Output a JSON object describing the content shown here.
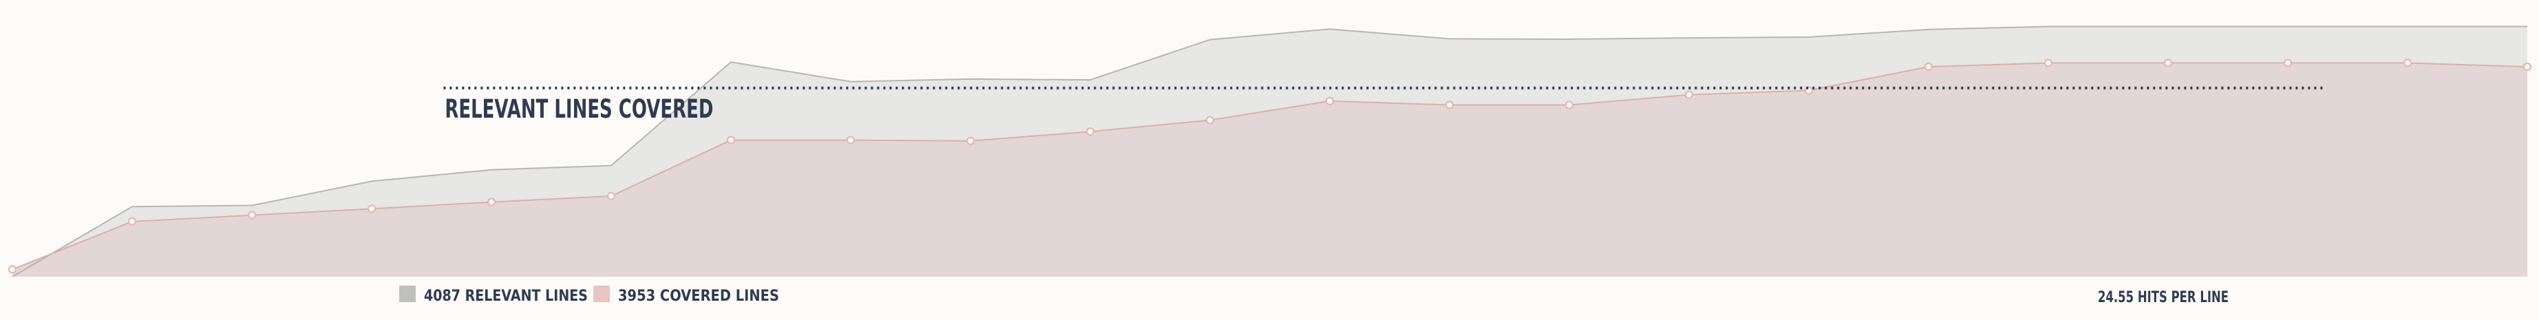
{
  "chart_data": {
    "type": "area",
    "title": "RELEVANT LINES COVERED",
    "x": [
      1,
      2,
      3,
      4,
      5,
      6,
      7,
      8,
      9,
      10,
      11,
      12,
      13,
      14,
      15,
      16,
      17,
      18,
      19,
      20,
      21,
      22
    ],
    "series": [
      {
        "name": "RELEVANT LINES",
        "values": [
          0,
          1650,
          1680,
          2250,
          2520,
          2620,
          5060,
          4600,
          4660,
          4640,
          5590,
          5840,
          5610,
          5600,
          5630,
          5650,
          5830,
          5900,
          5900,
          5900,
          5900,
          5900
        ],
        "color": "#e7e7e3",
        "line_color": "#b6b6b2"
      },
      {
        "name": "COVERED LINES",
        "values": [
          170,
          1300,
          1450,
          1600,
          1760,
          1900,
          3220,
          3220,
          3200,
          3420,
          3690,
          4140,
          4050,
          4050,
          4290,
          4390,
          4950,
          5040,
          5040,
          5040,
          5040,
          4950
        ],
        "color": "#e3d7d5",
        "line_color": "#dcaeae",
        "marker_color": "#e8b5b5"
      }
    ],
    "ylim": [
      0,
      6200
    ],
    "reference_line": {
      "label": "RELEVANT LINES COVERED",
      "value": 4450,
      "x_start": 4.6,
      "x_end": 20.3,
      "color": "#2e3b52"
    },
    "legend": {
      "position": "bottom",
      "items": [
        {
          "swatch_color": "#bfbfbc",
          "label": "4087 RELEVANT LINES"
        },
        {
          "swatch_color": "#e8c4c4",
          "label": "3953 COVERED LINES"
        }
      ]
    },
    "annotation": "24.55 HITS PER LINE",
    "grid": false
  }
}
